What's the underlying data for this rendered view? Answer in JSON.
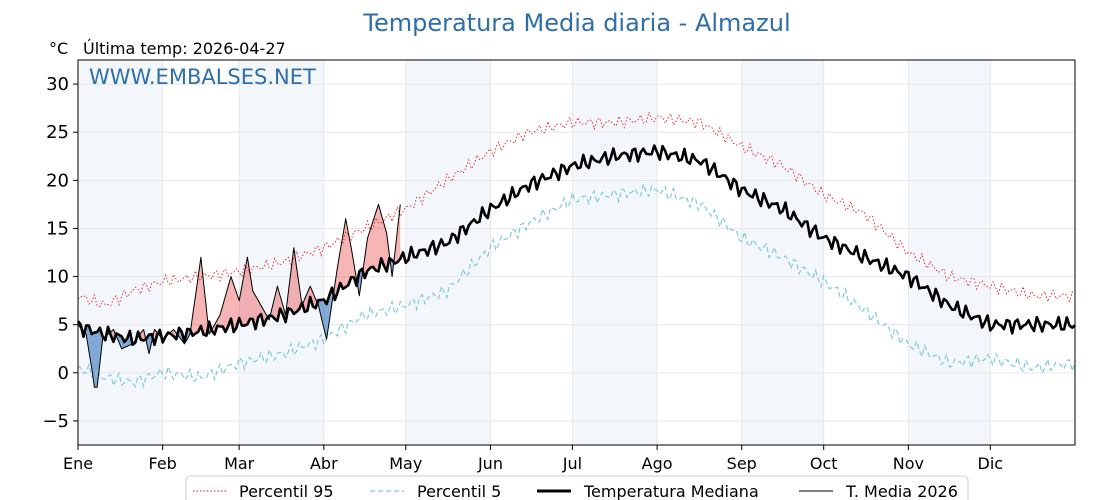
{
  "chart_data": {
    "type": "line",
    "title": "Temperatura Media diaria - Almazul",
    "unit_label": "°C",
    "last_temp": "Última temp: 2026-04-27",
    "watermark": "WWW.EMBALSES.NET",
    "xlim": [
      0,
      365
    ],
    "ylim": [
      -7.5,
      32.5
    ],
    "y_ticks": [
      -5,
      0,
      5,
      10,
      15,
      20,
      25,
      30
    ],
    "y_tick_labels": [
      "−5",
      "0",
      "5",
      "10",
      "15",
      "20",
      "25",
      "30"
    ],
    "months": [
      {
        "label": "Ene",
        "day": 0
      },
      {
        "label": "Feb",
        "day": 31
      },
      {
        "label": "Mar",
        "day": 59
      },
      {
        "label": "Abr",
        "day": 90
      },
      {
        "label": "May",
        "day": 120
      },
      {
        "label": "Jun",
        "day": 151
      },
      {
        "label": "Jul",
        "day": 181
      },
      {
        "label": "Ago",
        "day": 212
      },
      {
        "label": "Sep",
        "day": 243
      },
      {
        "label": "Oct",
        "day": 273
      },
      {
        "label": "Nov",
        "day": 304
      },
      {
        "label": "Dic",
        "day": 334
      }
    ],
    "grid": true,
    "legend_position": "bottom",
    "series": [
      {
        "name": "Percentil 95",
        "color": "#e41a1c",
        "style": "dotted",
        "knots": [
          [
            0,
            8
          ],
          [
            10,
            7
          ],
          [
            20,
            8.5
          ],
          [
            31,
            9.5
          ],
          [
            45,
            10
          ],
          [
            59,
            10.5
          ],
          [
            75,
            11.5
          ],
          [
            90,
            13
          ],
          [
            105,
            15
          ],
          [
            120,
            17
          ],
          [
            135,
            20
          ],
          [
            151,
            23
          ],
          [
            165,
            25
          ],
          [
            181,
            26
          ],
          [
            196,
            26
          ],
          [
            212,
            26.5
          ],
          [
            228,
            26
          ],
          [
            243,
            23.5
          ],
          [
            258,
            21.5
          ],
          [
            273,
            18.5
          ],
          [
            288,
            16.5
          ],
          [
            304,
            12.5
          ],
          [
            319,
            10
          ],
          [
            334,
            9
          ],
          [
            350,
            8
          ],
          [
            365,
            8
          ]
        ]
      },
      {
        "name": "Percentil 5",
        "color": "#7ec8dc",
        "style": "dashed",
        "knots": [
          [
            0,
            0.5
          ],
          [
            10,
            -0.5
          ],
          [
            20,
            -1
          ],
          [
            31,
            0
          ],
          [
            45,
            -0.5
          ],
          [
            59,
            1
          ],
          [
            75,
            2
          ],
          [
            90,
            3.5
          ],
          [
            105,
            6
          ],
          [
            120,
            7
          ],
          [
            135,
            8.5
          ],
          [
            151,
            13
          ],
          [
            165,
            15.5
          ],
          [
            181,
            18
          ],
          [
            196,
            18.5
          ],
          [
            212,
            19
          ],
          [
            228,
            17.5
          ],
          [
            243,
            14
          ],
          [
            258,
            12
          ],
          [
            273,
            9.5
          ],
          [
            288,
            6.5
          ],
          [
            304,
            3
          ],
          [
            319,
            1
          ],
          [
            334,
            1.5
          ],
          [
            350,
            0.5
          ],
          [
            365,
            1
          ]
        ]
      },
      {
        "name": "Temperatura Mediana",
        "color": "#000000",
        "style": "thick",
        "knots": [
          [
            0,
            4.8
          ],
          [
            10,
            4
          ],
          [
            20,
            3.5
          ],
          [
            31,
            3.8
          ],
          [
            45,
            4.3
          ],
          [
            59,
            5
          ],
          [
            75,
            6
          ],
          [
            90,
            7.5
          ],
          [
            105,
            10.5
          ],
          [
            120,
            12
          ],
          [
            135,
            13.5
          ],
          [
            151,
            17
          ],
          [
            165,
            19.5
          ],
          [
            181,
            21.5
          ],
          [
            196,
            22.5
          ],
          [
            212,
            23
          ],
          [
            228,
            22
          ],
          [
            243,
            19
          ],
          [
            258,
            17
          ],
          [
            273,
            14
          ],
          [
            288,
            12
          ],
          [
            304,
            10
          ],
          [
            319,
            7
          ],
          [
            334,
            5
          ],
          [
            350,
            5
          ],
          [
            365,
            5
          ]
        ]
      },
      {
        "name": "T. Media 2026",
        "color": "#000000",
        "style": "thin",
        "knots": [
          [
            0,
            5
          ],
          [
            3,
            4
          ],
          [
            5,
            0.5
          ],
          [
            6,
            -1.5
          ],
          [
            7,
            -1.5
          ],
          [
            9,
            3.5
          ],
          [
            13,
            4.5
          ],
          [
            16,
            2.5
          ],
          [
            20,
            3
          ],
          [
            24,
            4.5
          ],
          [
            26,
            2
          ],
          [
            28,
            4.5
          ],
          [
            31,
            3.5
          ],
          [
            35,
            4.5
          ],
          [
            39,
            3
          ],
          [
            41,
            4
          ],
          [
            45,
            12
          ],
          [
            48,
            4
          ],
          [
            52,
            6
          ],
          [
            56,
            10
          ],
          [
            59,
            7.5
          ],
          [
            62,
            12
          ],
          [
            64,
            8.5
          ],
          [
            67,
            7
          ],
          [
            70,
            5.5
          ],
          [
            73,
            9
          ],
          [
            76,
            6
          ],
          [
            79,
            13
          ],
          [
            82,
            7
          ],
          [
            85,
            9
          ],
          [
            88,
            7
          ],
          [
            91,
            3.5
          ],
          [
            95,
            11
          ],
          [
            98,
            16
          ],
          [
            100,
            13
          ],
          [
            103,
            8
          ],
          [
            106,
            14
          ],
          [
            110,
            17.5
          ],
          [
            113,
            14.5
          ],
          [
            115,
            10
          ],
          [
            118,
            17.5
          ]
        ]
      }
    ]
  }
}
